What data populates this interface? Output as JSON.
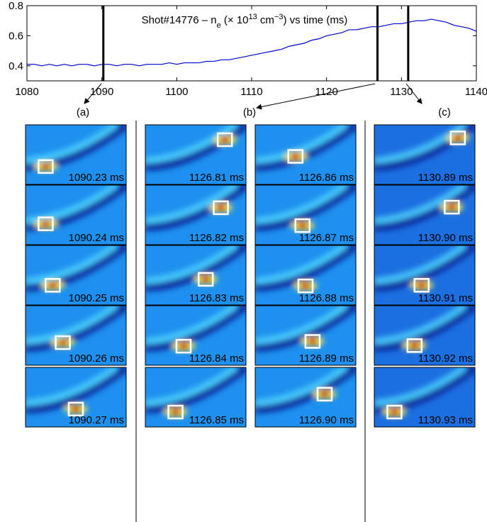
{
  "chart_data": {
    "type": "line",
    "title": [
      "Shot#14776 – n",
      "e",
      " (× 10",
      "13",
      " cm",
      "−3",
      ") vs time (ms)"
    ],
    "x": [
      1080,
      1081,
      1082,
      1083,
      1084,
      1085,
      1086,
      1087,
      1088,
      1089,
      1090,
      1091,
      1092,
      1093,
      1094,
      1095,
      1096,
      1097,
      1098,
      1099,
      1100,
      1101,
      1102,
      1103,
      1104,
      1105,
      1106,
      1107,
      1108,
      1109,
      1110,
      1111,
      1112,
      1113,
      1114,
      1115,
      1116,
      1117,
      1118,
      1119,
      1120,
      1121,
      1122,
      1123,
      1124,
      1125,
      1126,
      1127,
      1128,
      1129,
      1130,
      1131,
      1132,
      1133,
      1134,
      1135,
      1136,
      1137,
      1138,
      1139,
      1140
    ],
    "values": [
      0.41,
      0.41,
      0.4,
      0.41,
      0.4,
      0.41,
      0.4,
      0.41,
      0.41,
      0.4,
      0.41,
      0.41,
      0.4,
      0.41,
      0.41,
      0.4,
      0.41,
      0.41,
      0.41,
      0.42,
      0.41,
      0.42,
      0.42,
      0.42,
      0.43,
      0.43,
      0.44,
      0.44,
      0.45,
      0.46,
      0.47,
      0.48,
      0.49,
      0.5,
      0.51,
      0.53,
      0.54,
      0.55,
      0.57,
      0.58,
      0.6,
      0.61,
      0.62,
      0.64,
      0.64,
      0.65,
      0.66,
      0.66,
      0.67,
      0.68,
      0.68,
      0.69,
      0.7,
      0.7,
      0.71,
      0.7,
      0.69,
      0.67,
      0.66,
      0.65,
      0.63
    ],
    "color": "#0000cc",
    "xlim": [
      1080,
      1140
    ],
    "xticks": [
      1080,
      1090,
      1100,
      1110,
      1120,
      1130,
      1140
    ],
    "ylim": [
      0.3,
      0.8
    ],
    "yticks": [
      0.4,
      0.6,
      0.8
    ],
    "markers": [
      1090.2,
      1126.8,
      1130.9
    ]
  },
  "panels": {
    "labels": [
      "(a)",
      "(b)",
      "(c)"
    ],
    "columns": [
      [
        "1090.23 ms",
        "1090.24 ms",
        "1090.25 ms",
        "1090.26 ms",
        "1090.27 ms"
      ],
      [
        "1126.81 ms",
        "1126.82 ms",
        "1126.83 ms",
        "1126.84 ms",
        "1126.85 ms"
      ],
      [
        "1126.86 ms",
        "1126.87 ms",
        "1126.88 ms",
        "1126.89 ms",
        "1126.90 ms"
      ],
      [
        "1130.89 ms",
        "1130.90 ms",
        "1130.91 ms",
        "1130.92 ms",
        "1130.93 ms"
      ]
    ]
  }
}
